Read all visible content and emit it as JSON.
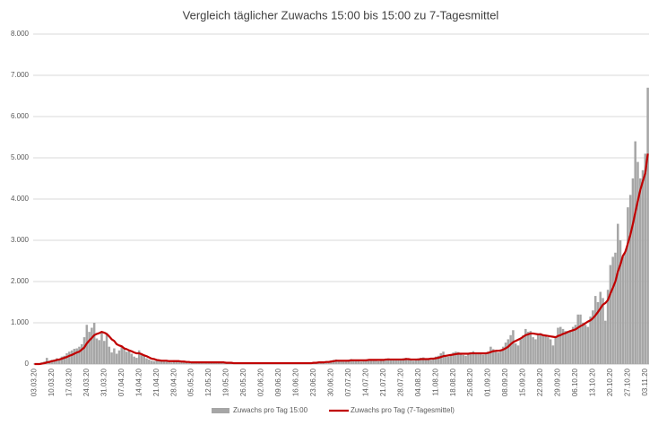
{
  "chart_data": {
    "type": "bar",
    "title": "Vergleich täglicher Zuwachs 15:00 bis 15:00 zu 7-Tagesmittel",
    "categories": [
      "03.03.20",
      null,
      null,
      null,
      null,
      null,
      null,
      "10.03.20",
      null,
      null,
      null,
      null,
      null,
      null,
      "17.03.20",
      null,
      null,
      null,
      null,
      null,
      null,
      "24.03.20",
      null,
      null,
      null,
      null,
      null,
      null,
      "31.03.20",
      null,
      null,
      null,
      null,
      null,
      null,
      "07.04.20",
      null,
      null,
      null,
      null,
      null,
      null,
      "14.04.20",
      null,
      null,
      null,
      null,
      null,
      null,
      "21.04.20",
      null,
      null,
      null,
      null,
      null,
      null,
      "28.04.20",
      null,
      null,
      null,
      null,
      null,
      null,
      "05.05.20",
      null,
      null,
      null,
      null,
      null,
      null,
      "12.05.20",
      null,
      null,
      null,
      null,
      null,
      null,
      "19.05.20",
      null,
      null,
      null,
      null,
      null,
      null,
      "26.05.20",
      null,
      null,
      null,
      null,
      null,
      null,
      "02.06.20",
      null,
      null,
      null,
      null,
      null,
      null,
      "09.06.20",
      null,
      null,
      null,
      null,
      null,
      null,
      "16.06.20",
      null,
      null,
      null,
      null,
      null,
      null,
      "23.06.20",
      null,
      null,
      null,
      null,
      null,
      null,
      "30.06.20",
      null,
      null,
      null,
      null,
      null,
      null,
      "07.07.20",
      null,
      null,
      null,
      null,
      null,
      null,
      "14.07.20",
      null,
      null,
      null,
      null,
      null,
      null,
      "21.07.20",
      null,
      null,
      null,
      null,
      null,
      null,
      "28.07.20",
      null,
      null,
      null,
      null,
      null,
      null,
      "04.08.20",
      null,
      null,
      null,
      null,
      null,
      null,
      "11.08.20",
      null,
      null,
      null,
      null,
      null,
      null,
      "18.08.20",
      null,
      null,
      null,
      null,
      null,
      null,
      "25.08.20",
      null,
      null,
      null,
      null,
      null,
      null,
      "01.09.20",
      null,
      null,
      null,
      null,
      null,
      null,
      "08.09.20",
      null,
      null,
      null,
      null,
      null,
      null,
      "15.09.20",
      null,
      null,
      null,
      null,
      null,
      null,
      "22.09.20",
      null,
      null,
      null,
      null,
      null,
      null,
      "29.09.20",
      null,
      null,
      null,
      null,
      null,
      null,
      "06.10.20",
      null,
      null,
      null,
      null,
      null,
      null,
      "13.10.20",
      null,
      null,
      null,
      null,
      null,
      null,
      "20.10.20",
      null,
      null,
      null,
      null,
      null,
      null,
      "27.10.20",
      null,
      null,
      null,
      null,
      null,
      null,
      "03.11.20",
      null
    ],
    "series": [
      {
        "name": "Zuwachs pro Tag 15:00",
        "type": "bar",
        "color": "#a6a6a6",
        "values": [
          10,
          20,
          20,
          40,
          60,
          150,
          80,
          100,
          110,
          140,
          130,
          180,
          200,
          260,
          300,
          330,
          370,
          380,
          420,
          480,
          650,
          950,
          780,
          880,
          1000,
          620,
          580,
          780,
          560,
          720,
          420,
          280,
          380,
          250,
          330,
          420,
          380,
          300,
          330,
          250,
          180,
          150,
          330,
          250,
          200,
          140,
          110,
          80,
          70,
          110,
          90,
          80,
          70,
          60,
          50,
          40,
          90,
          80,
          70,
          60,
          50,
          40,
          30,
          40,
          50,
          40,
          30,
          20,
          20,
          30,
          50,
          60,
          40,
          50,
          30,
          20,
          20,
          30,
          30,
          20,
          20,
          20,
          10,
          10,
          20,
          20,
          30,
          20,
          10,
          10,
          10,
          20,
          20,
          20,
          30,
          20,
          10,
          10,
          20,
          30,
          30,
          20,
          10,
          10,
          20,
          30,
          30,
          40,
          20,
          20,
          10,
          20,
          40,
          50,
          60,
          50,
          40,
          30,
          40,
          80,
          100,
          110,
          90,
          80,
          60,
          70,
          100,
          120,
          110,
          90,
          80,
          60,
          80,
          110,
          120,
          120,
          100,
          90,
          70,
          90,
          110,
          130,
          140,
          120,
          100,
          90,
          100,
          130,
          140,
          150,
          120,
          100,
          80,
          90,
          140,
          150,
          160,
          130,
          110,
          100,
          130,
          180,
          200,
          260,
          300,
          220,
          180,
          230,
          280,
          300,
          290,
          250,
          220,
          200,
          250,
          280,
          310,
          280,
          260,
          240,
          230,
          260,
          300,
          420,
          360,
          330,
          280,
          350,
          420,
          520,
          600,
          700,
          820,
          500,
          450,
          600,
          700,
          850,
          780,
          800,
          650,
          600,
          700,
          750,
          720,
          700,
          650,
          600,
          450,
          650,
          880,
          900,
          850,
          800,
          780,
          820,
          900,
          950,
          1200,
          1200,
          1000,
          950,
          900,
          1150,
          1300,
          1650,
          1500,
          1750,
          1600,
          1050,
          1800,
          2400,
          2600,
          2700,
          3400,
          3000,
          2600,
          2700,
          3800,
          4100,
          4500,
          5400,
          4900,
          4500,
          4700,
          5100,
          6700
        ]
      },
      {
        "name": "Zuwachs pro Tag (7-Tagesmittel)",
        "type": "line",
        "color": "#c00000",
        "values": [
          0,
          0,
          0,
          10,
          20,
          40,
          50,
          70,
          80,
          100,
          110,
          130,
          150,
          170,
          200,
          220,
          250,
          280,
          300,
          350,
          400,
          500,
          570,
          630,
          700,
          730,
          750,
          780,
          760,
          730,
          670,
          600,
          560,
          480,
          450,
          430,
          380,
          360,
          330,
          310,
          280,
          260,
          260,
          240,
          210,
          190,
          160,
          130,
          120,
          100,
          90,
          80,
          80,
          80,
          70,
          70,
          70,
          70,
          70,
          60,
          60,
          50,
          50,
          40,
          40,
          40,
          40,
          40,
          40,
          40,
          40,
          40,
          40,
          40,
          40,
          40,
          40,
          30,
          30,
          30,
          20,
          20,
          20,
          20,
          20,
          20,
          20,
          20,
          20,
          20,
          20,
          20,
          20,
          20,
          20,
          20,
          20,
          20,
          20,
          20,
          20,
          20,
          20,
          20,
          20,
          20,
          20,
          20,
          20,
          20,
          20,
          20,
          30,
          30,
          40,
          40,
          40,
          50,
          50,
          60,
          70,
          80,
          80,
          80,
          80,
          80,
          80,
          90,
          90,
          90,
          90,
          90,
          90,
          90,
          100,
          100,
          100,
          100,
          100,
          100,
          100,
          110,
          110,
          110,
          110,
          110,
          110,
          110,
          110,
          120,
          120,
          110,
          110,
          110,
          110,
          120,
          120,
          120,
          120,
          130,
          130,
          140,
          150,
          170,
          190,
          200,
          210,
          220,
          230,
          240,
          250,
          250,
          250,
          250,
          250,
          260,
          260,
          260,
          260,
          260,
          260,
          260,
          270,
          290,
          310,
          320,
          320,
          330,
          350,
          380,
          420,
          480,
          530,
          560,
          590,
          620,
          660,
          700,
          720,
          740,
          740,
          730,
          720,
          720,
          700,
          690,
          680,
          670,
          660,
          650,
          680,
          700,
          730,
          750,
          780,
          800,
          820,
          840,
          880,
          920,
          950,
          990,
          1030,
          1060,
          1110,
          1180,
          1260,
          1350,
          1440,
          1480,
          1550,
          1710,
          1850,
          2000,
          2240,
          2410,
          2620,
          2720,
          2920,
          3130,
          3390,
          3680,
          3950,
          4220,
          4430,
          4630,
          5100
        ]
      }
    ],
    "ylim": [
      0,
      8000
    ],
    "yticks": [
      0,
      {
        "value": 1000,
        "label": "1.000"
      },
      {
        "value": 2000,
        "label": "2.000"
      },
      {
        "value": 3000,
        "label": "3.000"
      },
      {
        "value": 4000,
        "label": "4.000"
      },
      {
        "value": 5000,
        "label": "5.000"
      },
      {
        "value": 6000,
        "label": "6.000"
      },
      {
        "value": 7000,
        "label": "7.000"
      },
      {
        "value": 8000,
        "label": "8.000"
      }
    ],
    "grid": true,
    "legend": "bottom"
  }
}
